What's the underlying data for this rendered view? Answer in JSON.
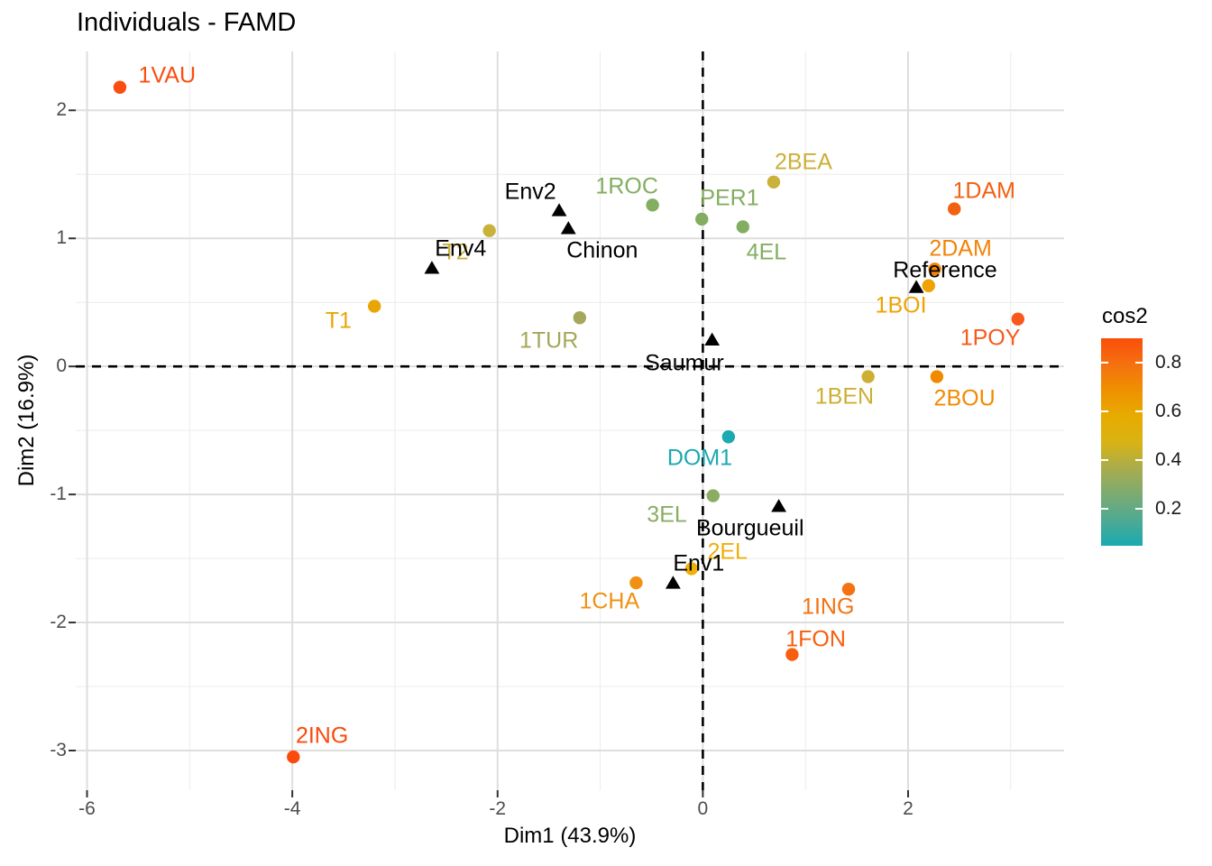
{
  "title": "Individuals - FAMD",
  "axes": {
    "x": {
      "label": "Dim1 (43.9%)",
      "tick_labels": [
        "-6",
        "-4",
        "-2",
        "0",
        "2"
      ],
      "tick_values": [
        -6,
        -4,
        -2,
        0,
        2
      ],
      "minor_ticks": [
        -5,
        -3,
        -1,
        1,
        3
      ]
    },
    "y": {
      "label": "Dim2 (16.9%)",
      "tick_labels": [
        "2",
        "1",
        "0",
        "-1",
        "-2",
        "-3"
      ],
      "tick_values": [
        2,
        1,
        0,
        -1,
        -2,
        -3
      ],
      "minor_ticks": [
        1.5,
        0.5,
        -0.5,
        -1.5,
        -2.5
      ]
    }
  },
  "legend": {
    "title": "cos2",
    "tick_labels": [
      "0.8",
      "0.6",
      "0.4",
      "0.2"
    ],
    "tick_values": [
      0.8,
      0.6,
      0.4,
      0.2
    ],
    "scale_range": [
      0.05,
      0.9
    ],
    "gradient_colors": {
      "low": "#00AFBB",
      "mid": "#E7B800",
      "high": "#FC4E07"
    },
    "gradient_stops": [
      "#1AAAB1",
      "#4FAA92",
      "#7CAB71",
      "#A9AC4C",
      "#D9B314",
      "#E7AB00",
      "#EF9000",
      "#F57010",
      "#FA4E0A"
    ]
  },
  "chart_data": {
    "type": "scatter",
    "title": "Individuals - FAMD",
    "xlabel": "Dim1 (43.9%)",
    "ylabel": "Dim2 (16.9%)",
    "xlim": [
      -6.11,
      3.52
    ],
    "ylim": [
      -3.31,
      2.46
    ],
    "grid": "major+minor",
    "legend_position": "right",
    "reference_lines": {
      "vertical_x": 0,
      "horizontal_y": 0,
      "style": "dashed",
      "color": "#000000"
    },
    "series": [
      {
        "name": "individuals",
        "marker": "circle",
        "color_by": "cos2",
        "points": [
          {
            "label": "1VAU",
            "x": -5.68,
            "y": 2.18,
            "cos2": 0.87,
            "color": "#F94E12",
            "label_x": -5.22,
            "label_y": 2.27
          },
          {
            "label": "T1",
            "x": -3.2,
            "y": 0.47,
            "cos2": 0.55,
            "color": "#E9A602",
            "label_x": -3.55,
            "label_y": 0.35
          },
          {
            "label": "T2",
            "x": -2.08,
            "y": 1.06,
            "cos2": 0.42,
            "color": "#C9B23C",
            "label_x": -2.41,
            "label_y": 0.89
          },
          {
            "label": "1TUR",
            "x": -1.2,
            "y": 0.38,
            "cos2": 0.33,
            "color": "#A5A75A",
            "label_x": -1.5,
            "label_y": 0.2
          },
          {
            "label": "1ROC",
            "x": -0.49,
            "y": 1.26,
            "cos2": 0.25,
            "color": "#83AD60",
            "label_x": -0.74,
            "label_y": 1.4
          },
          {
            "label": "PER1",
            "x": -0.01,
            "y": 1.15,
            "cos2": 0.25,
            "color": "#83AD60",
            "label_x": 0.26,
            "label_y": 1.31
          },
          {
            "label": "4EL",
            "x": 0.39,
            "y": 1.09,
            "cos2": 0.25,
            "color": "#83AD60",
            "label_x": 0.62,
            "label_y": 0.89
          },
          {
            "label": "2BEA",
            "x": 0.69,
            "y": 1.44,
            "cos2": 0.43,
            "color": "#CBB039",
            "label_x": 0.98,
            "label_y": 1.59
          },
          {
            "label": "1DAM",
            "x": 2.45,
            "y": 1.23,
            "cos2": 0.77,
            "color": "#F26011",
            "label_x": 2.74,
            "label_y": 1.37
          },
          {
            "label": "2DAM",
            "x": 2.26,
            "y": 0.76,
            "cos2": 0.67,
            "color": "#F28406",
            "label_x": 2.51,
            "label_y": 0.92
          },
          {
            "label": "1BOI",
            "x": 2.2,
            "y": 0.63,
            "cos2": 0.58,
            "color": "#EFA202",
            "label_x": 1.93,
            "label_y": 0.47
          },
          {
            "label": "1POY",
            "x": 3.07,
            "y": 0.37,
            "cos2": 0.8,
            "color": "#F9591B",
            "label_x": 2.8,
            "label_y": 0.22
          },
          {
            "label": "1BEN",
            "x": 1.61,
            "y": -0.08,
            "cos2": 0.44,
            "color": "#CDAF33",
            "label_x": 1.38,
            "label_y": -0.24
          },
          {
            "label": "2BOU",
            "x": 2.28,
            "y": -0.08,
            "cos2": 0.65,
            "color": "#F18A00",
            "label_x": 2.55,
            "label_y": -0.25
          },
          {
            "label": "DOM1",
            "x": 0.25,
            "y": -0.55,
            "cos2": 0.06,
            "color": "#1BA9B2",
            "label_x": -0.03,
            "label_y": -0.72
          },
          {
            "label": "3EL",
            "x": 0.1,
            "y": -1.01,
            "cos2": 0.26,
            "color": "#8AAD62",
            "label_x": -0.35,
            "label_y": -1.16
          },
          {
            "label": "2EL",
            "x": -0.11,
            "y": -1.58,
            "cos2": 0.53,
            "color": "#EFAF07",
            "label_x": 0.24,
            "label_y": -1.45
          },
          {
            "label": "1CHA",
            "x": -0.65,
            "y": -1.69,
            "cos2": 0.64,
            "color": "#F09114",
            "label_x": -0.91,
            "label_y": -1.84
          },
          {
            "label": "1ING",
            "x": 1.42,
            "y": -1.74,
            "cos2": 0.72,
            "color": "#F47212",
            "label_x": 1.22,
            "label_y": -1.88
          },
          {
            "label": "1FON",
            "x": 0.87,
            "y": -2.25,
            "cos2": 0.8,
            "color": "#F75E0D",
            "label_x": 1.1,
            "label_y": -2.13
          },
          {
            "label": "2ING",
            "x": -3.99,
            "y": -3.05,
            "cos2": 0.89,
            "color": "#FB4A0C",
            "label_x": -3.71,
            "label_y": -2.89
          }
        ]
      },
      {
        "name": "qualitative-variable-categories",
        "marker": "triangle",
        "color": "#000000",
        "points": [
          {
            "label": "Env2",
            "x": -1.4,
            "y": 1.22,
            "label_x": -1.68,
            "label_y": 1.36
          },
          {
            "label": "Chinon",
            "x": -1.31,
            "y": 1.08,
            "label_x": -0.98,
            "label_y": 0.9
          },
          {
            "label": "Env4",
            "x": -2.64,
            "y": 0.77,
            "label_x": -2.36,
            "label_y": 0.92
          },
          {
            "label": "Reference",
            "x": 2.08,
            "y": 0.62,
            "label_x": 2.36,
            "label_y": 0.75
          },
          {
            "label": "Saumur",
            "x": 0.09,
            "y": 0.21,
            "label_x": -0.18,
            "label_y": 0.02
          },
          {
            "label": "Bourgueuil",
            "x": 0.74,
            "y": -1.09,
            "label_x": 0.46,
            "label_y": -1.27
          },
          {
            "label": "Env1",
            "x": -0.29,
            "y": -1.69,
            "label_x": -0.04,
            "label_y": -1.54
          }
        ]
      }
    ]
  }
}
